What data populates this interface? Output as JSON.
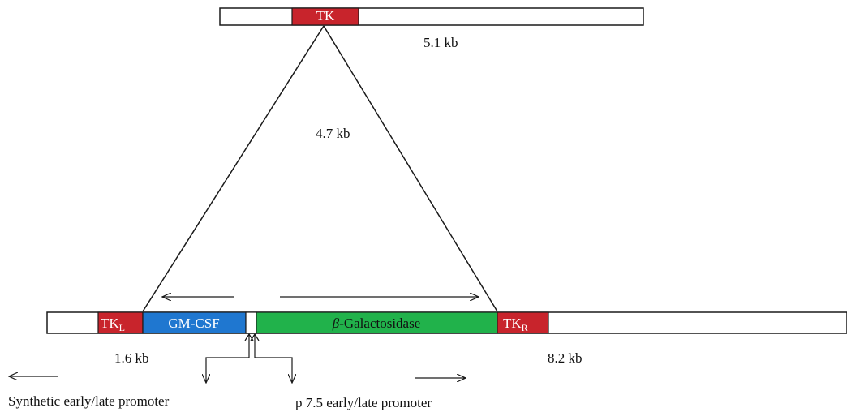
{
  "colors": {
    "tk": "#c8242c",
    "gmcsf": "#1f77d0",
    "bgal": "#21b24b",
    "outline": "#1a1a1a",
    "background": "#ffffff"
  },
  "top_construct": {
    "tk_label": "TK",
    "size_label": "5.1 kb"
  },
  "insert": {
    "size_label": "4.7 kb"
  },
  "bottom_construct": {
    "tk_left_label": "TK",
    "tk_left_sub": "L",
    "gmcsf_label": "GM-CSF",
    "bgal_greek": "β",
    "bgal_label": "-Galactosidase",
    "tk_right_label": "TK",
    "tk_right_sub": "R",
    "left_size_label": "1.6 kb",
    "right_size_label": "8.2 kb"
  },
  "legend": {
    "synthetic_promoter_label": "Synthetic early/late promoter",
    "p75_promoter_label": "p 7.5 early/late promoter"
  }
}
